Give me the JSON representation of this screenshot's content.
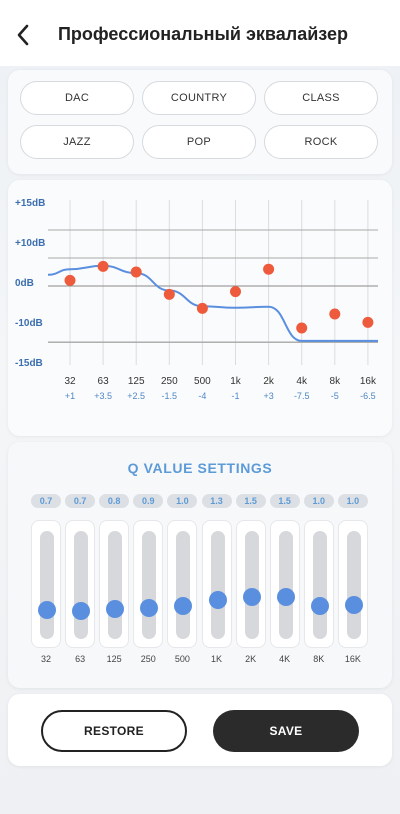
{
  "header": {
    "title": "Профессиональный эквалайзер",
    "back_icon": "chevron-left-icon"
  },
  "presets": [
    "DAC",
    "COUNTRY",
    "CLASS",
    "JAZZ",
    "POP",
    "ROCK"
  ],
  "equalizer": {
    "db_labels": [
      "+15dB",
      "+10dB",
      "0dB",
      "-10dB",
      "-15dB"
    ],
    "bands": [
      {
        "freq": "32",
        "gain": "+1",
        "gain_value": 1
      },
      {
        "freq": "63",
        "gain": "+3.5",
        "gain_value": 3.5
      },
      {
        "freq": "125",
        "gain": "+2.5",
        "gain_value": 2.5
      },
      {
        "freq": "250",
        "gain": "-1.5",
        "gain_value": -1.5
      },
      {
        "freq": "500",
        "gain": "-4",
        "gain_value": -4
      },
      {
        "freq": "1k",
        "gain": "-1",
        "gain_value": -1
      },
      {
        "freq": "2k",
        "gain": "+3",
        "gain_value": 3
      },
      {
        "freq": "4k",
        "gain": "-7.5",
        "gain_value": -7.5
      },
      {
        "freq": "8k",
        "gain": "-5",
        "gain_value": -5
      },
      {
        "freq": "16k",
        "gain": "-6.5",
        "gain_value": -6.5
      }
    ],
    "curve_color": "#5a8fe0",
    "point_color": "#ee5a3c"
  },
  "q_settings": {
    "title": "Q VALUE SETTINGS",
    "bands": [
      {
        "label": "32",
        "value": "0.7",
        "level": 0.22
      },
      {
        "label": "63",
        "value": "0.7",
        "level": 0.21
      },
      {
        "label": "125",
        "value": "0.8",
        "level": 0.23
      },
      {
        "label": "250",
        "value": "0.9",
        "level": 0.25
      },
      {
        "label": "500",
        "value": "1.0",
        "level": 0.27
      },
      {
        "label": "1K",
        "value": "1.3",
        "level": 0.33
      },
      {
        "label": "2K",
        "value": "1.5",
        "level": 0.37
      },
      {
        "label": "4K",
        "value": "1.5",
        "level": 0.37
      },
      {
        "label": "8K",
        "value": "1.0",
        "level": 0.27
      },
      {
        "label": "16K",
        "value": "1.0",
        "level": 0.28
      }
    ],
    "accent": "#5c9bd8"
  },
  "actions": {
    "restore_label": "RESTORE",
    "save_label": "SAVE"
  }
}
